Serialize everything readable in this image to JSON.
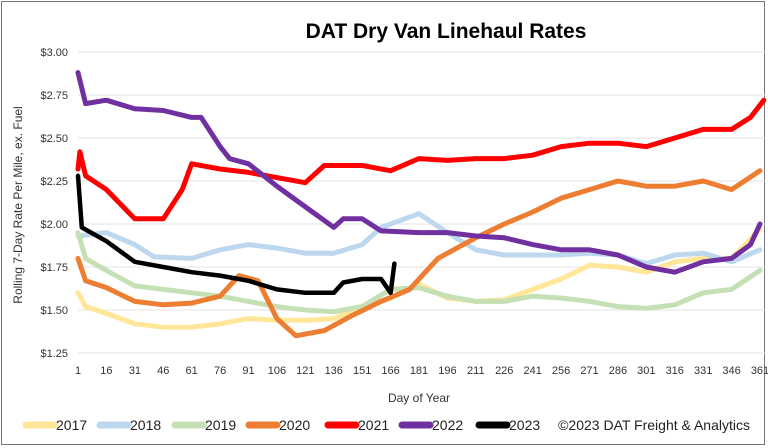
{
  "chart_data": {
    "type": "line",
    "title": "DAT Dry Van Linehaul Rates",
    "xlabel": "Day of Year",
    "ylabel": "Rolling 7-Day Rate Per Mile, ex. Fuel",
    "ylim": [
      1.25,
      3.0
    ],
    "xlim": [
      1,
      365
    ],
    "yticks": [
      1.25,
      1.5,
      1.75,
      2.0,
      2.25,
      2.5,
      2.75,
      3.0
    ],
    "ytick_labels": [
      "$1.25",
      "$1.50",
      "$1.75",
      "$2.00",
      "$2.25",
      "$2.50",
      "$2.75",
      "$3.00"
    ],
    "xticks": [
      1,
      16,
      31,
      46,
      61,
      76,
      91,
      106,
      121,
      136,
      151,
      166,
      181,
      196,
      211,
      226,
      241,
      256,
      271,
      286,
      301,
      316,
      331,
      346,
      361
    ],
    "grid": "horizontal",
    "legend_position": "bottom",
    "credit": "©2023 DAT Freight & Analytics",
    "series": [
      {
        "name": "2017",
        "color": "#FFE699",
        "x": [
          1,
          5,
          16,
          31,
          46,
          61,
          76,
          91,
          106,
          121,
          136,
          151,
          166,
          181,
          196,
          211,
          226,
          241,
          256,
          271,
          286,
          301,
          316,
          331,
          346,
          361
        ],
        "y": [
          1.6,
          1.52,
          1.48,
          1.42,
          1.4,
          1.4,
          1.42,
          1.45,
          1.44,
          1.44,
          1.45,
          1.52,
          1.57,
          1.65,
          1.57,
          1.55,
          1.56,
          1.62,
          1.68,
          1.76,
          1.75,
          1.72,
          1.78,
          1.8,
          1.8,
          1.97
        ]
      },
      {
        "name": "2018",
        "color": "#BDD7EE",
        "x": [
          1,
          16,
          31,
          41,
          61,
          76,
          91,
          106,
          121,
          136,
          151,
          161,
          181,
          196,
          211,
          226,
          241,
          256,
          271,
          286,
          301,
          316,
          331,
          346,
          361
        ],
        "y": [
          1.93,
          1.95,
          1.88,
          1.81,
          1.8,
          1.85,
          1.88,
          1.86,
          1.83,
          1.83,
          1.88,
          1.98,
          2.06,
          1.95,
          1.85,
          1.82,
          1.82,
          1.82,
          1.83,
          1.82,
          1.77,
          1.82,
          1.83,
          1.78,
          1.85
        ]
      },
      {
        "name": "2019",
        "color": "#C5E0B4",
        "x": [
          1,
          5,
          16,
          31,
          46,
          61,
          76,
          91,
          106,
          121,
          136,
          151,
          166,
          181,
          196,
          211,
          226,
          241,
          256,
          271,
          286,
          301,
          316,
          331,
          346,
          361
        ],
        "y": [
          1.95,
          1.8,
          1.73,
          1.64,
          1.62,
          1.6,
          1.58,
          1.55,
          1.52,
          1.5,
          1.49,
          1.52,
          1.62,
          1.63,
          1.58,
          1.55,
          1.55,
          1.58,
          1.57,
          1.55,
          1.52,
          1.51,
          1.53,
          1.6,
          1.62,
          1.73
        ]
      },
      {
        "name": "2020",
        "color": "#ED7D31",
        "x": [
          1,
          5,
          16,
          31,
          46,
          61,
          76,
          86,
          96,
          106,
          116,
          131,
          146,
          161,
          176,
          191,
          211,
          226,
          241,
          256,
          271,
          286,
          301,
          316,
          331,
          346,
          361
        ],
        "y": [
          1.8,
          1.67,
          1.63,
          1.55,
          1.53,
          1.54,
          1.58,
          1.7,
          1.67,
          1.45,
          1.35,
          1.38,
          1.47,
          1.55,
          1.62,
          1.8,
          1.92,
          2.0,
          2.07,
          2.15,
          2.2,
          2.25,
          2.22,
          2.22,
          2.25,
          2.2,
          2.31
        ]
      },
      {
        "name": "2021",
        "color": "#FF0000",
        "x": [
          1,
          2,
          5,
          16,
          31,
          46,
          56,
          61,
          76,
          91,
          106,
          121,
          131,
          151,
          166,
          181,
          196,
          211,
          226,
          241,
          256,
          271,
          286,
          301,
          316,
          331,
          346,
          356,
          363
        ],
        "y": [
          2.32,
          2.42,
          2.28,
          2.2,
          2.03,
          2.03,
          2.2,
          2.35,
          2.32,
          2.3,
          2.27,
          2.24,
          2.34,
          2.34,
          2.31,
          2.38,
          2.37,
          2.38,
          2.38,
          2.4,
          2.45,
          2.47,
          2.47,
          2.45,
          2.5,
          2.55,
          2.55,
          2.62,
          2.72
        ]
      },
      {
        "name": "2022",
        "color": "#7030A0",
        "x": [
          1,
          5,
          16,
          31,
          46,
          61,
          66,
          76,
          81,
          91,
          106,
          121,
          136,
          141,
          151,
          161,
          181,
          196,
          211,
          226,
          241,
          256,
          271,
          286,
          301,
          316,
          331,
          346,
          356,
          361
        ],
        "y": [
          2.88,
          2.7,
          2.72,
          2.67,
          2.66,
          2.62,
          2.62,
          2.45,
          2.38,
          2.35,
          2.22,
          2.1,
          1.98,
          2.03,
          2.03,
          1.96,
          1.95,
          1.95,
          1.93,
          1.92,
          1.88,
          1.85,
          1.85,
          1.82,
          1.75,
          1.72,
          1.78,
          1.8,
          1.88,
          2.0
        ]
      },
      {
        "name": "2023",
        "color": "#000000",
        "x": [
          1,
          3,
          16,
          31,
          46,
          61,
          76,
          91,
          106,
          121,
          136,
          141,
          151,
          161,
          166,
          168
        ],
        "y": [
          2.28,
          1.98,
          1.9,
          1.78,
          1.75,
          1.72,
          1.7,
          1.67,
          1.62,
          1.6,
          1.6,
          1.66,
          1.68,
          1.68,
          1.6,
          1.77
        ]
      }
    ]
  }
}
